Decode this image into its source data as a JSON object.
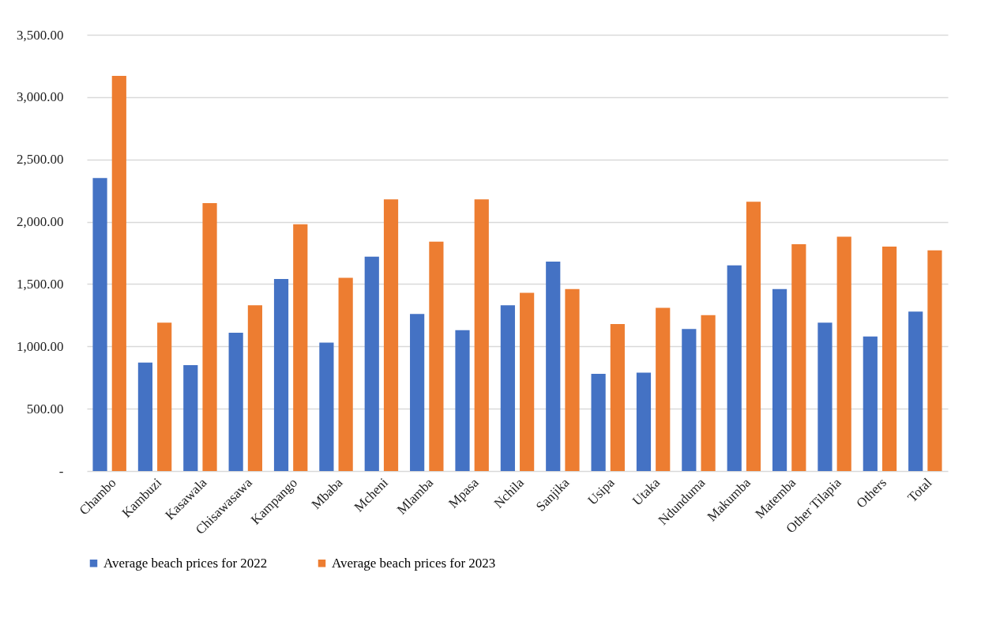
{
  "chart_data": {
    "type": "bar",
    "categories": [
      "Chambo",
      "Kambuzi",
      "Kasawala",
      "Chisawasawa",
      "Kampango",
      "Mbaba",
      "Mcheni",
      "Mlamba",
      "Mpasa",
      "Nchila",
      "Sanjika",
      "Usipa",
      "Utaka",
      "Ndunduma",
      "Makumba",
      "Matemba",
      "Other Tilapia",
      "Others",
      "Total"
    ],
    "series": [
      {
        "name": "Average beach prices for 2022",
        "color": "#4472c4",
        "values": [
          2350,
          870,
          850,
          1110,
          1540,
          1030,
          1720,
          1260,
          1130,
          1330,
          1680,
          780,
          790,
          1140,
          1650,
          1460,
          1190,
          1080,
          1280
        ]
      },
      {
        "name": "Average beach prices for 2023",
        "color": "#ed7d31",
        "values": [
          3170,
          1190,
          2150,
          1330,
          1980,
          1550,
          2180,
          1840,
          2180,
          1430,
          1460,
          1180,
          1310,
          1250,
          2160,
          1820,
          1880,
          1800,
          1770
        ]
      }
    ],
    "ylim": [
      0,
      3500
    ],
    "yticks": [
      {
        "value": 0,
        "label": "-"
      },
      {
        "value": 500,
        "label": "500.00"
      },
      {
        "value": 1000,
        "label": "1,000.00"
      },
      {
        "value": 1500,
        "label": "1,500.00"
      },
      {
        "value": 2000,
        "label": "2,000.00"
      },
      {
        "value": 2500,
        "label": "2,500.00"
      },
      {
        "value": 3000,
        "label": "3,000.00"
      },
      {
        "value": 3500,
        "label": "3,500.00"
      }
    ],
    "grid": "y",
    "legend": "bottom"
  }
}
